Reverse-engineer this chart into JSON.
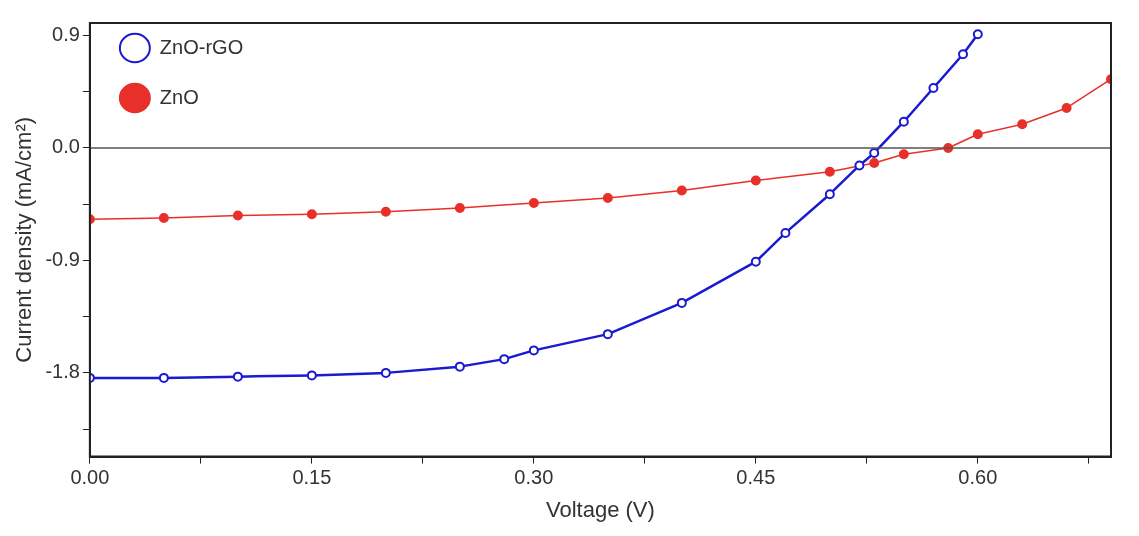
{
  "chart_data": {
    "type": "line",
    "xlabel": "Voltage (V)",
    "ylabel": "Current density (mA/cm²)",
    "xlim": [
      0,
      0.69
    ],
    "xticks": [
      {
        "value": 0,
        "label": "0.00"
      },
      {
        "value": 0.075,
        "label": null
      },
      {
        "value": 0.15,
        "label": "0.15"
      },
      {
        "value": 0.225,
        "label": null
      },
      {
        "value": 0.3,
        "label": "0.30"
      },
      {
        "value": 0.375,
        "label": null
      },
      {
        "value": 0.45,
        "label": "0.45"
      },
      {
        "value": 0.525,
        "label": null
      },
      {
        "value": 0.6,
        "label": "0.60"
      },
      {
        "value": 0.675,
        "label": null
      }
    ],
    "ylim": [
      -2.47,
      1.0
    ],
    "yticks": [
      {
        "value": -2.25,
        "label": null
      },
      -1.8,
      {
        "value": -1.35,
        "label": null
      },
      -0.9,
      {
        "value": -0.45,
        "label": null
      },
      {
        "value": 0,
        "label": "0.0"
      },
      {
        "value": 0.45,
        "label": null
      },
      0.9
    ],
    "grid": false,
    "legend": "top left",
    "marker": "circle",
    "line_style": "solid",
    "ref_lines": [
      {
        "axis": "y",
        "value": 0,
        "label": null,
        "color": "#555555"
      }
    ],
    "series": [
      {
        "name": "ZnO-rGO",
        "color": "#1a1ad0",
        "x": [
          0,
          0.05,
          0.1,
          0.15,
          0.2,
          0.25,
          0.28,
          0.3,
          0.35,
          0.4,
          0.45,
          0.47,
          0.5,
          0.52,
          0.53,
          0.55,
          0.57,
          0.59,
          0.6
        ],
        "values": [
          -1.84,
          -1.84,
          -1.83,
          -1.82,
          -1.8,
          -1.75,
          -1.69,
          -1.62,
          -1.49,
          -1.24,
          -0.91,
          -0.68,
          -0.37,
          -0.14,
          -0.04,
          0.21,
          0.48,
          0.75,
          0.91
        ]
      },
      {
        "name": "ZnO",
        "color": "#e8302a",
        "x": [
          0,
          0.05,
          0.1,
          0.15,
          0.2,
          0.25,
          0.3,
          0.35,
          0.4,
          0.45,
          0.5,
          0.53,
          0.55,
          0.58,
          0.6,
          0.63,
          0.66,
          0.69
        ],
        "values": [
          -0.57,
          -0.56,
          -0.54,
          -0.53,
          -0.51,
          -0.48,
          -0.44,
          -0.4,
          -0.34,
          -0.26,
          -0.19,
          -0.12,
          -0.05,
          0.0,
          0.11,
          0.19,
          0.32,
          0.55
        ]
      }
    ]
  }
}
